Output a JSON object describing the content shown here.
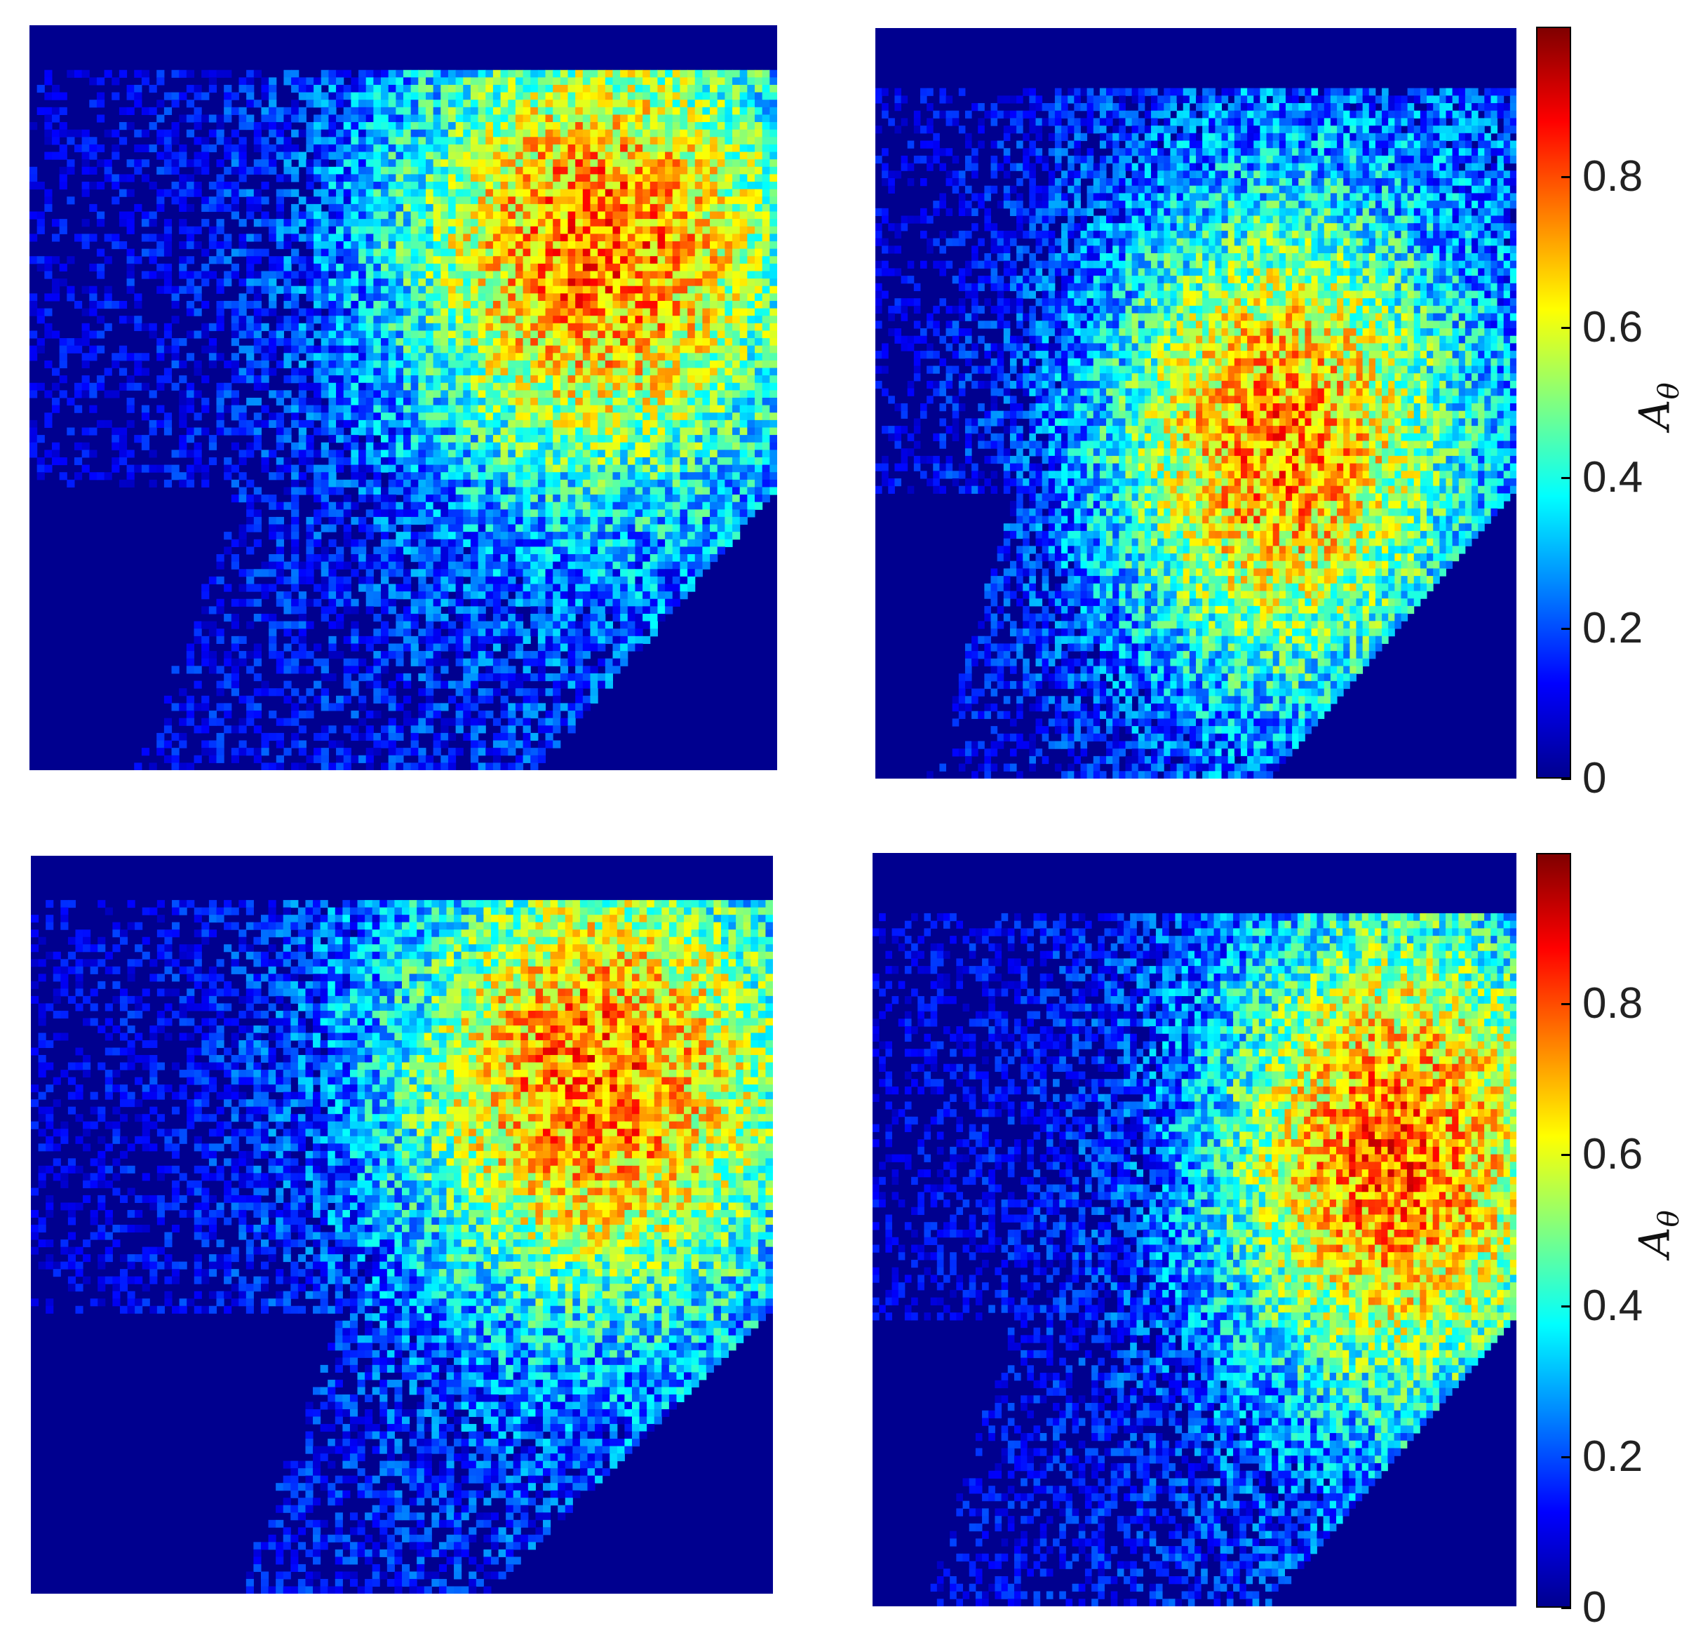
{
  "chart_data": {
    "type": "heatmap",
    "colormap": "jet",
    "panels": [
      {
        "position": "top-left",
        "colorbar": false
      },
      {
        "position": "top-right",
        "colorbar": true
      },
      {
        "position": "bottom-left",
        "colorbar": false
      },
      {
        "position": "bottom-right",
        "colorbar": true
      }
    ],
    "colorbar": {
      "label_main": "A",
      "label_sub": "θ",
      "range": [
        0,
        1
      ],
      "ticks": [
        "0",
        "0.2",
        "0.4",
        "0.6",
        "0.8"
      ],
      "tick_values": [
        0,
        0.2,
        0.4,
        0.6,
        0.8
      ]
    }
  }
}
